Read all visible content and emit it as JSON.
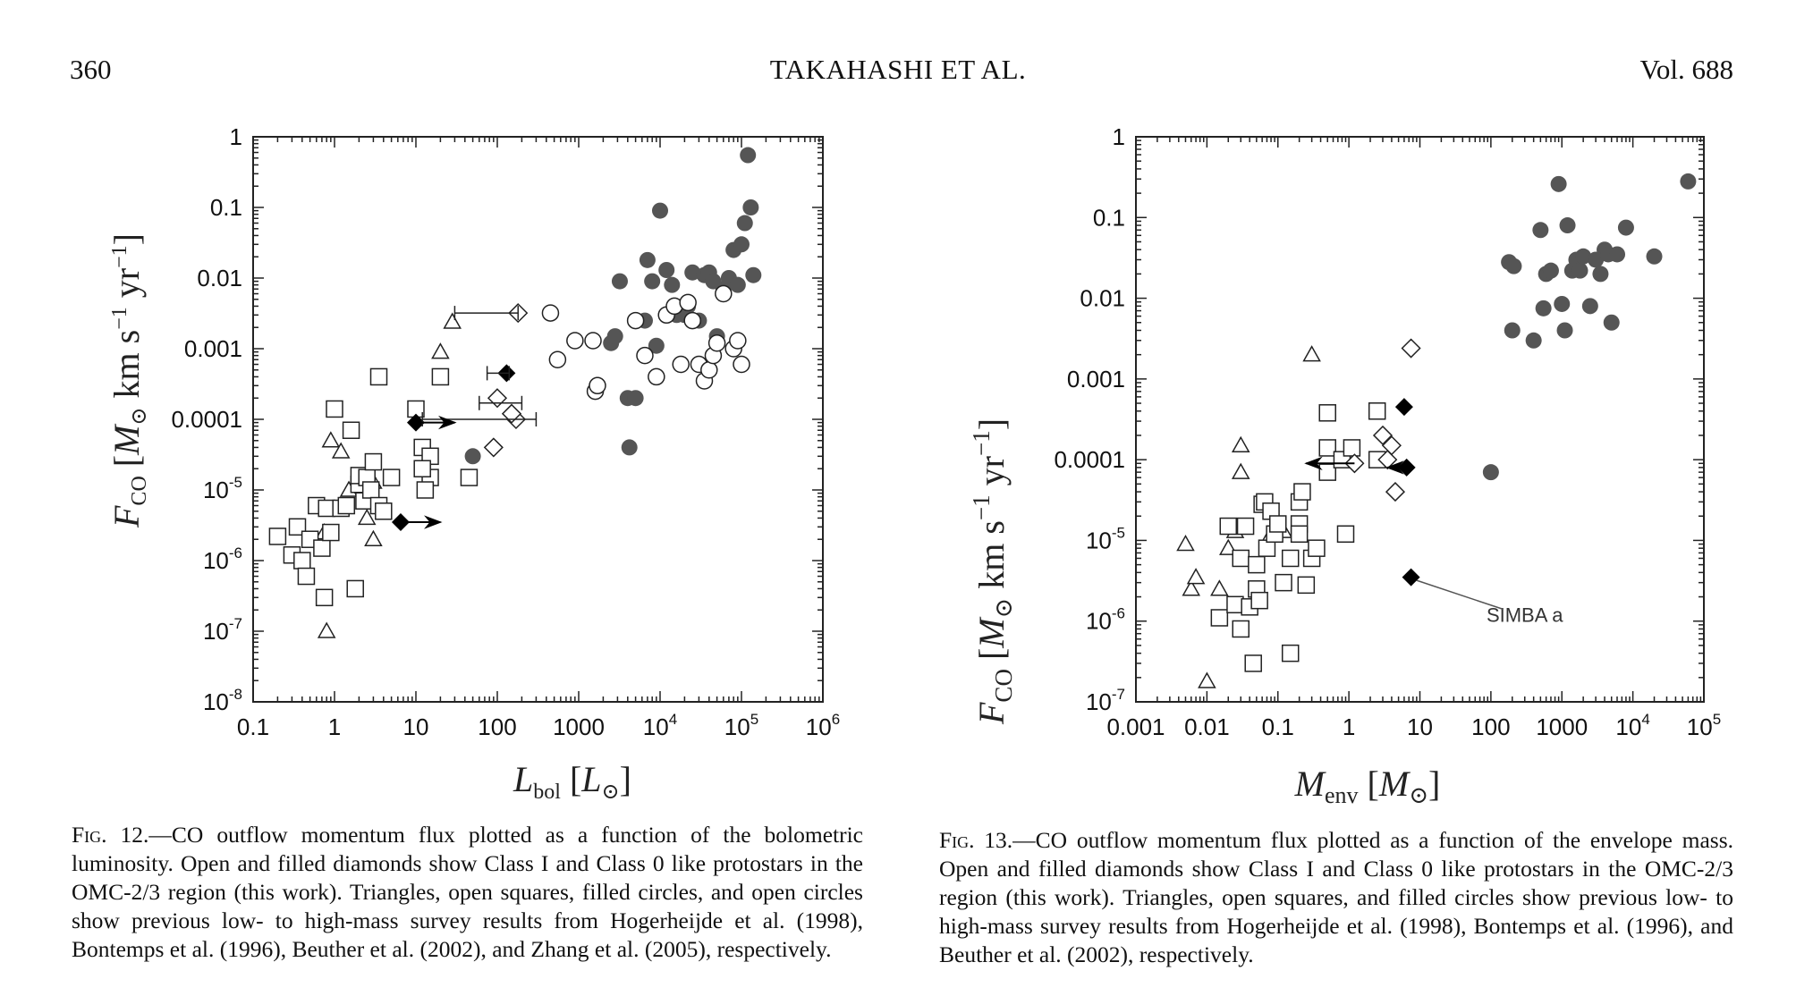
{
  "header": {
    "page": "360",
    "title": "TAKAHASHI ET AL.",
    "volume": "Vol.  688"
  },
  "figures": [
    {
      "caption_lead": "Fig. 12.",
      "caption_text": "—CO outflow momentum flux plotted as a function of the bolometric luminosity. Open and filled diamonds show Class I and Class 0 like protostars in the OMC-2/3 region (this work). Triangles, open squares, filled circles, and open circles show previous low- to high-mass survey results from Hogerheijde et al. (1998), Bontemps et al. (1996), Beuther et al. (2002), and Zhang et al. (2005), respectively.",
      "ylabel": "FCO [M⊙ km s−1 yr−1]",
      "xlabel": "Lbol [L⊙]",
      "xticks": [
        "0.1",
        "1",
        "10",
        "100",
        "1000",
        "10^4",
        "10^5",
        "10^6"
      ],
      "yticks": [
        "1",
        "0.1",
        "0.01",
        "0.001",
        "0.0001",
        "10^-5",
        "10^-6",
        "10^-7",
        "10^-8"
      ]
    },
    {
      "caption_lead": "Fig. 13.",
      "caption_text": "—CO outflow momentum flux plotted as a function of the envelope mass. Open and filled diamonds show Class I and Class 0 like protostars in the OMC-2/3 region (this work). Triangles, open squares, and filled circles show previous low- to high-mass survey results from Hogerheijde et al. (1998), Bontemps et al. (1996), and Beuther et al. (2002), respectively.",
      "ylabel": "FCO [M⊙ km s−1 yr−1]",
      "xlabel": "Menv [M⊙]",
      "xticks": [
        "0.001",
        "0.01",
        "0.1",
        "1",
        "10",
        "100",
        "1000",
        "10^4",
        "10^5"
      ],
      "yticks": [
        "1",
        "0.1",
        "0.01",
        "0.001",
        "0.0001",
        "10^-5",
        "10^-6",
        "10^-7"
      ],
      "annotation": "SIMBA a"
    }
  ],
  "chart_data": [
    {
      "type": "scatter",
      "x_scale": "log",
      "y_scale": "log",
      "xlim": [
        0.1,
        1000000
      ],
      "ylim": [
        1e-08,
        1
      ],
      "series": [
        {
          "marker": "triangle",
          "points": [
            [
              0.8,
              1e-07
            ],
            [
              0.9,
              5e-05
            ],
            [
              1.2,
              3.5e-05
            ],
            [
              3,
              2e-06
            ],
            [
              2.5,
              4e-06
            ],
            [
              3,
              1.3e-05
            ],
            [
              2.2,
              1.5e-05
            ],
            [
              20,
              0.0009
            ],
            [
              28,
              0.0024
            ],
            [
              0.75,
              2.5e-06
            ],
            [
              1.5,
              1e-05
            ]
          ]
        },
        {
          "marker": "square",
          "points": [
            [
              0.2,
              2.2e-06
            ],
            [
              0.3,
              1.2e-06
            ],
            [
              0.35,
              3e-06
            ],
            [
              0.4,
              1e-06
            ],
            [
              0.45,
              6e-07
            ],
            [
              0.5,
              2e-06
            ],
            [
              0.6,
              6e-06
            ],
            [
              0.7,
              1.5e-06
            ],
            [
              0.75,
              3e-07
            ],
            [
              0.8,
              5.5e-06
            ],
            [
              0.9,
              2.5e-06
            ],
            [
              1,
              0.00014
            ],
            [
              1.2,
              5.5e-06
            ],
            [
              1.4,
              6e-06
            ],
            [
              1.6,
              7e-05
            ],
            [
              1.8,
              4e-07
            ],
            [
              2,
              1.2e-05
            ],
            [
              2,
              1.6e-05
            ],
            [
              2.3,
              7e-06
            ],
            [
              2.5,
              1.5e-05
            ],
            [
              2.8,
              1e-05
            ],
            [
              3,
              2.5e-05
            ],
            [
              3.5,
              6e-06
            ],
            [
              3.5,
              0.0004
            ],
            [
              4,
              5e-06
            ],
            [
              5,
              1.5e-05
            ],
            [
              10,
              0.00014
            ],
            [
              12,
              4e-05
            ],
            [
              15,
              1.5e-05
            ],
            [
              15,
              3e-05
            ],
            [
              13,
              1e-05
            ],
            [
              45,
              1.5e-05
            ],
            [
              20,
              0.0004
            ],
            [
              12,
              2e-05
            ]
          ]
        },
        {
          "marker": "filled-circle",
          "points": [
            [
              50,
              3e-05
            ],
            [
              2500,
              0.0012
            ],
            [
              2800,
              0.0015
            ],
            [
              3200,
              0.009
            ],
            [
              4000,
              0.0002
            ],
            [
              4200,
              4e-05
            ],
            [
              5000,
              0.0002
            ],
            [
              6500,
              0.0025
            ],
            [
              7000,
              0.018
            ],
            [
              8000,
              0.009
            ],
            [
              9000,
              0.0011
            ],
            [
              10000,
              0.09
            ],
            [
              12000,
              0.013
            ],
            [
              14000,
              0.008
            ],
            [
              16000,
              0.003
            ],
            [
              20000,
              0.003
            ],
            [
              22000,
              0.004
            ],
            [
              25000,
              0.012
            ],
            [
              30000,
              0.0025
            ],
            [
              35000,
              0.011
            ],
            [
              40000,
              0.012
            ],
            [
              45000,
              0.009
            ],
            [
              50000,
              0.0015
            ],
            [
              60000,
              0.007
            ],
            [
              70000,
              0.01
            ],
            [
              80000,
              0.025
            ],
            [
              90000,
              0.008
            ],
            [
              100000,
              0.03
            ],
            [
              110000,
              0.06
            ],
            [
              120000,
              0.55
            ],
            [
              130000,
              0.1
            ],
            [
              140000,
              0.011
            ]
          ]
        },
        {
          "marker": "open-circle",
          "points": [
            [
              450,
              0.0032
            ],
            [
              550,
              0.0007
            ],
            [
              900,
              0.0013
            ],
            [
              1500,
              0.0013
            ],
            [
              1600,
              0.00025
            ],
            [
              1700,
              0.0003
            ],
            [
              5000,
              0.0025
            ],
            [
              6500,
              0.0008
            ],
            [
              9000,
              0.0004
            ],
            [
              12000,
              0.003
            ],
            [
              15000,
              0.004
            ],
            [
              18000,
              0.0006
            ],
            [
              22000,
              0.0045
            ],
            [
              25000,
              0.0025
            ],
            [
              30000,
              0.0006
            ],
            [
              35000,
              0.00035
            ],
            [
              40000,
              0.0005
            ],
            [
              45000,
              0.0008
            ],
            [
              50000,
              0.0012
            ],
            [
              60000,
              0.006
            ],
            [
              80000,
              0.001
            ],
            [
              90000,
              0.0013
            ],
            [
              100000,
              0.0006
            ]
          ]
        },
        {
          "marker": "open-diamond",
          "points": [
            [
              180,
              0.0032
            ],
            [
              100,
              0.0002
            ],
            [
              150,
              0.00012
            ],
            [
              170,
              0.0001
            ],
            [
              90,
              4e-05
            ],
            [
              150,
              0.00012
            ]
          ]
        },
        {
          "marker": "filled-diamond",
          "points": [
            [
              130,
              0.00045
            ],
            [
              10,
              9e-05
            ],
            [
              6.5,
              3.5e-06
            ]
          ]
        }
      ]
    },
    {
      "type": "scatter",
      "x_scale": "log",
      "y_scale": "log",
      "xlim": [
        0.001,
        100000
      ],
      "ylim": [
        1e-07,
        1
      ],
      "series": [
        {
          "marker": "triangle",
          "points": [
            [
              0.005,
              9e-06
            ],
            [
              0.006,
              2.5e-06
            ],
            [
              0.007,
              3.5e-06
            ],
            [
              0.01,
              1.8e-07
            ],
            [
              0.015,
              2.5e-06
            ],
            [
              0.02,
              8e-06
            ],
            [
              0.025,
              1.3e-05
            ],
            [
              0.03,
              7e-05
            ],
            [
              0.03,
              0.00015
            ],
            [
              0.3,
              0.002
            ],
            [
              0.08,
              1.2e-05
            ],
            [
              0.12,
              1.3e-05
            ]
          ]
        },
        {
          "marker": "square",
          "points": [
            [
              0.015,
              1.1e-06
            ],
            [
              0.02,
              1.5e-05
            ],
            [
              0.025,
              1.6e-06
            ],
            [
              0.03,
              8e-07
            ],
            [
              0.03,
              6e-06
            ],
            [
              0.035,
              1.5e-05
            ],
            [
              0.04,
              1.5e-06
            ],
            [
              0.045,
              3e-07
            ],
            [
              0.05,
              5e-06
            ],
            [
              0.05,
              2.5e-06
            ],
            [
              0.055,
              1.8e-06
            ],
            [
              0.06,
              2.8e-05
            ],
            [
              0.065,
              3e-05
            ],
            [
              0.07,
              8e-06
            ],
            [
              0.08,
              2.3e-05
            ],
            [
              0.09,
              1.2e-05
            ],
            [
              0.1,
              1.6e-05
            ],
            [
              0.12,
              3e-06
            ],
            [
              0.15,
              6e-06
            ],
            [
              0.2,
              3e-05
            ],
            [
              0.2,
              1.6e-05
            ],
            [
              0.22,
              4e-05
            ],
            [
              0.25,
              2.8e-06
            ],
            [
              0.3,
              6e-06
            ],
            [
              0.35,
              8e-06
            ],
            [
              0.5,
              0.00038
            ],
            [
              0.5,
              0.00014
            ],
            [
              0.5,
              7e-05
            ],
            [
              0.8,
              0.0001
            ],
            [
              1.1,
              0.00014
            ],
            [
              2.5,
              0.0004
            ],
            [
              2.5,
              0.0001
            ],
            [
              0.15,
              4e-07
            ],
            [
              0.9,
              1.2e-05
            ],
            [
              0.2,
              1.2e-05
            ]
          ]
        },
        {
          "marker": "filled-circle",
          "points": [
            [
              100,
              7e-05
            ],
            [
              180,
              0.028
            ],
            [
              200,
              0.004
            ],
            [
              210,
              0.025
            ],
            [
              400,
              0.003
            ],
            [
              500,
              0.07
            ],
            [
              550,
              0.0075
            ],
            [
              600,
              0.02
            ],
            [
              700,
              0.022
            ],
            [
              900,
              0.26
            ],
            [
              1000,
              0.0085
            ],
            [
              1100,
              0.004
            ],
            [
              1200,
              0.08
            ],
            [
              1400,
              0.022
            ],
            [
              1600,
              0.03
            ],
            [
              1800,
              0.022
            ],
            [
              2000,
              0.033
            ],
            [
              2500,
              0.008
            ],
            [
              3000,
              0.03
            ],
            [
              3500,
              0.02
            ],
            [
              4000,
              0.04
            ],
            [
              4500,
              0.035
            ],
            [
              5000,
              0.005
            ],
            [
              6000,
              0.035
            ],
            [
              8000,
              0.075
            ],
            [
              20000,
              0.033
            ],
            [
              60000,
              0.28
            ]
          ]
        },
        {
          "marker": "open-diamond",
          "points": [
            [
              7.5,
              0.0024
            ],
            [
              1.2,
              9e-05
            ],
            [
              3,
              0.0002
            ],
            [
              4,
              0.00015
            ],
            [
              3.5,
              0.0001
            ],
            [
              4.5,
              4e-05
            ]
          ]
        },
        {
          "marker": "filled-diamond",
          "points": [
            [
              6,
              0.00045
            ],
            [
              6.5,
              8e-05
            ],
            [
              7.5,
              3.5e-06
            ]
          ]
        }
      ]
    }
  ]
}
